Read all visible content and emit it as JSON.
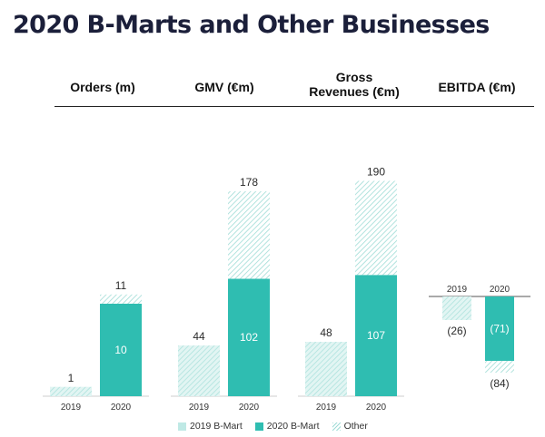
{
  "title": "2020 B-Marts and Other Businesses",
  "headers": {
    "orders": "Orders (m)",
    "gmv": "GMV (€m)",
    "gross_line1": "Gross",
    "gross_line2": "Revenues (€m)",
    "ebitda": "EBITDA (€m)"
  },
  "legend": {
    "b2019": "2019 B-Mart",
    "b2020": "2020 B-Mart",
    "other": "Other"
  },
  "colors": {
    "bmart_2019": "#bfe9e5",
    "bmart_2020": "#2fbdb1",
    "other_hatch": "#9fdcd6",
    "title": "#1b1f3a"
  },
  "chart_data": [
    {
      "type": "bar",
      "title": "Orders (m)",
      "categories": [
        "2019",
        "2020"
      ],
      "series": [
        {
          "name": "2019 B-Mart",
          "values": [
            1,
            null
          ]
        },
        {
          "name": "2020 B-Mart",
          "values": [
            null,
            10
          ]
        },
        {
          "name": "Other",
          "values": [
            null,
            1
          ]
        }
      ],
      "labels": {
        "top": [
          "1",
          "11"
        ],
        "inside": [
          null,
          "10"
        ]
      }
    },
    {
      "type": "bar",
      "title": "GMV (€m)",
      "categories": [
        "2019",
        "2020"
      ],
      "series": [
        {
          "name": "2019 B-Mart",
          "values": [
            44,
            null
          ]
        },
        {
          "name": "2020 B-Mart",
          "values": [
            null,
            102
          ]
        },
        {
          "name": "Other",
          "values": [
            null,
            76
          ]
        }
      ],
      "labels": {
        "top": [
          "44",
          "178"
        ],
        "inside": [
          null,
          "102"
        ]
      }
    },
    {
      "type": "bar",
      "title": "Gross Revenues (€m)",
      "categories": [
        "2019",
        "2020"
      ],
      "series": [
        {
          "name": "2019 B-Mart",
          "values": [
            48,
            null
          ]
        },
        {
          "name": "2020 B-Mart",
          "values": [
            null,
            107
          ]
        },
        {
          "name": "Other",
          "values": [
            null,
            83
          ]
        }
      ],
      "labels": {
        "top": [
          "48",
          "190"
        ],
        "inside": [
          null,
          "107"
        ]
      }
    },
    {
      "type": "bar",
      "title": "EBITDA (€m)",
      "categories": [
        "2019",
        "2020"
      ],
      "series": [
        {
          "name": "2019 B-Mart",
          "values": [
            -26,
            null
          ]
        },
        {
          "name": "2020 B-Mart",
          "values": [
            null,
            -71
          ]
        },
        {
          "name": "Other",
          "values": [
            null,
            -13
          ]
        }
      ],
      "labels": {
        "below": [
          "(26)",
          "(84)"
        ],
        "inside": [
          null,
          "(71)"
        ]
      }
    }
  ]
}
